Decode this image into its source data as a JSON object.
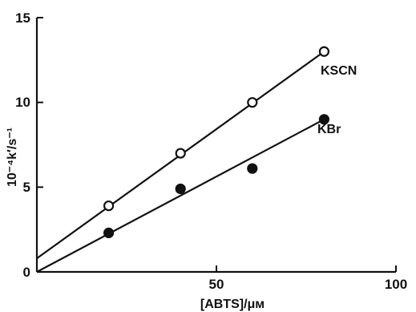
{
  "chart_data": {
    "type": "scatter",
    "xlabel": "[ABTS]/μм",
    "ylabel": "10⁻⁴k′/s⁻¹",
    "xlim": [
      0,
      100
    ],
    "ylim": [
      0,
      15
    ],
    "x_ticks": [
      "50",
      "100"
    ],
    "y_ticks": [
      "0",
      "5",
      "10",
      "15"
    ],
    "grid": false,
    "series": [
      {
        "name": "KSCN",
        "marker": "open-circle",
        "x": [
          20,
          40,
          60,
          80
        ],
        "y": [
          3.9,
          7.0,
          10.0,
          13.0
        ],
        "fit": {
          "x": [
            0,
            80
          ],
          "y": [
            0.8,
            13.0
          ]
        }
      },
      {
        "name": "KBr",
        "marker": "filled-circle",
        "x": [
          20,
          40,
          60,
          80
        ],
        "y": [
          2.3,
          4.9,
          6.1,
          9.0
        ],
        "fit": {
          "x": [
            0,
            80
          ],
          "y": [
            0.0,
            9.0
          ]
        }
      }
    ]
  }
}
